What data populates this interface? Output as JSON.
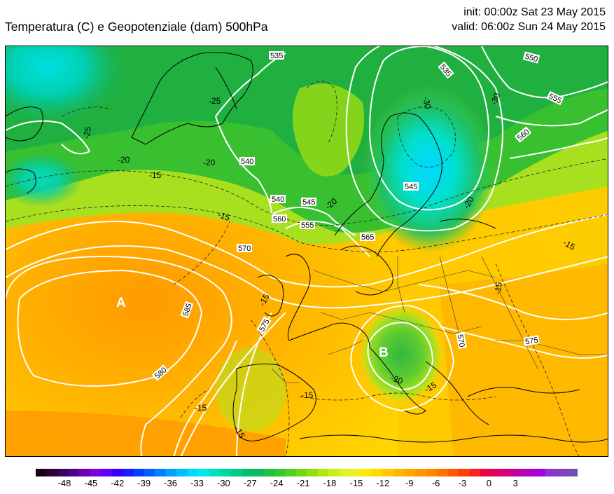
{
  "header": {
    "title": "Temperatura (C) e Geopotenziale (dam) 500hPa",
    "init": "init: 00:00z Sat 23 May 2015",
    "valid": "valid: 06:00z Sun 24 May 2015"
  },
  "map": {
    "pressure_centers": [
      {
        "label": "A"
      },
      {
        "label": "B"
      }
    ],
    "height_contour_labels": [
      "535",
      "535",
      "540",
      "540",
      "545",
      "545",
      "550",
      "555",
      "555",
      "560",
      "560",
      "565",
      "570",
      "570",
      "575",
      "575",
      "580",
      "585"
    ],
    "temperature_contour_labels": [
      "-25",
      "-25",
      "-20",
      "-20",
      "-20",
      "-20",
      "-20",
      "-15",
      "-15",
      "-15",
      "-15",
      "-15",
      "-15",
      "-15",
      "-15",
      "-15",
      "-30",
      "-30"
    ]
  },
  "colorbar": {
    "tick_labels": [
      "-48",
      "-45",
      "-42",
      "-39",
      "-36",
      "-33",
      "-30",
      "-27",
      "-24",
      "-21",
      "-18",
      "-15",
      "-12",
      "-9",
      "-6",
      "-3",
      "0",
      "3"
    ],
    "colors": [
      "#1a0010",
      "#2a0035",
      "#3c0060",
      "#52008a",
      "#6a00b5",
      "#7d00e0",
      "#6000ff",
      "#3a00ff",
      "#1a1aff",
      "#0040ff",
      "#0060ff",
      "#0080ff",
      "#00a0ff",
      "#00bfff",
      "#00d8ff",
      "#00eaea",
      "#00e0c0",
      "#00d8a0",
      "#00cc88",
      "#00c070",
      "#10b860",
      "#20c040",
      "#30c830",
      "#50d020",
      "#70d815",
      "#90e010",
      "#b0e810",
      "#c8f010",
      "#e0f020",
      "#f0f020",
      "#ffe800",
      "#ffd800",
      "#ffc800",
      "#ffb800",
      "#ffa800",
      "#ff9800",
      "#ff8800",
      "#ff7000",
      "#ff5800",
      "#ff4000",
      "#ff2020",
      "#f00040",
      "#e00060",
      "#d00080",
      "#c000a0",
      "#b000c0",
      "#a000e0",
      "#9030d0",
      "#8040c0",
      "#7050b0"
    ]
  }
}
